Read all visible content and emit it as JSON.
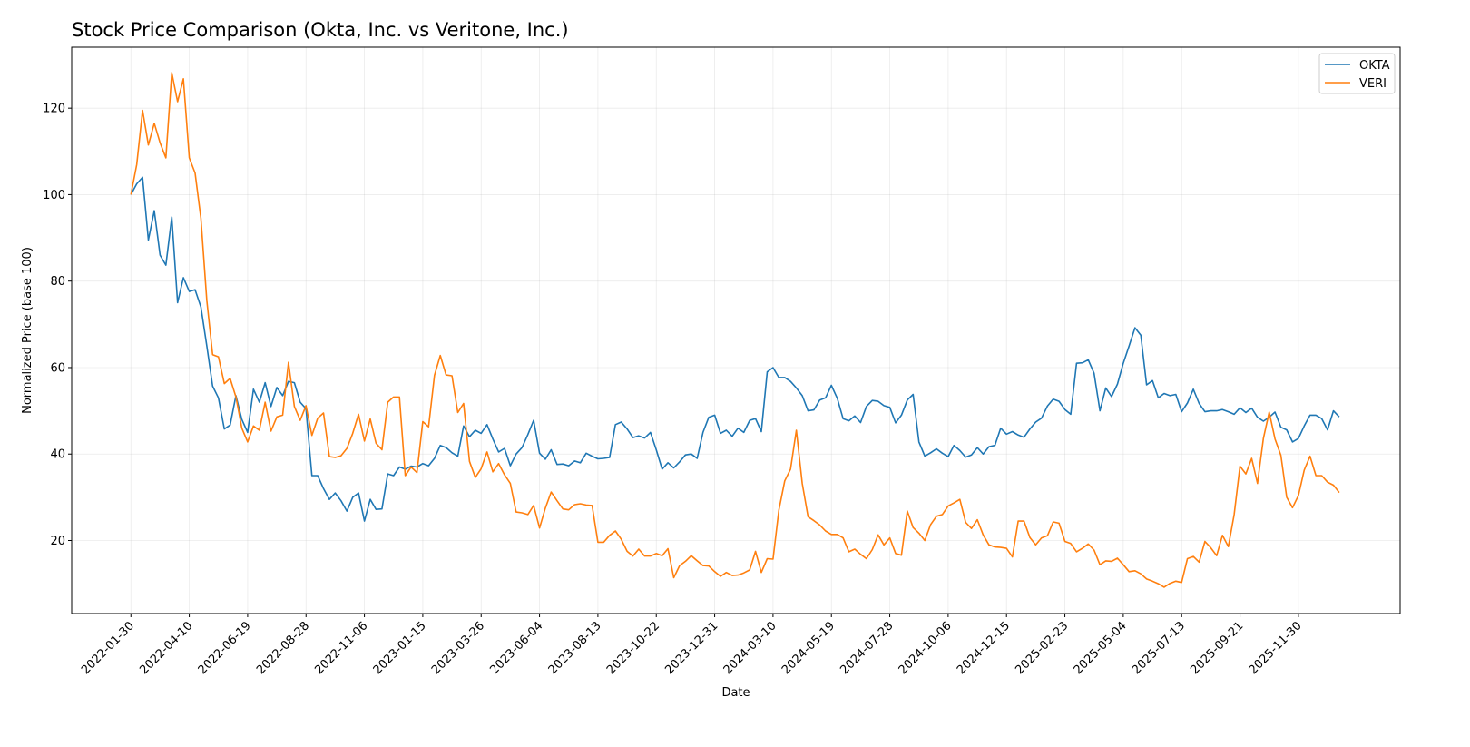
{
  "chart_data": {
    "type": "line",
    "title": "Stock Price Comparison (Okta, Inc. vs Veritone, Inc.)",
    "xlabel": "Date",
    "ylabel": "Normalized Price (base 100)",
    "ylim": [
      3.1,
      134.1
    ],
    "xlim": [
      "2021-11-20",
      "2026-04-01"
    ],
    "yticks": [
      20,
      40,
      60,
      80,
      100,
      120
    ],
    "xticks": [
      "2022-01-30",
      "2022-04-10",
      "2022-06-19",
      "2022-08-28",
      "2022-11-06",
      "2023-01-15",
      "2023-03-26",
      "2023-06-04",
      "2023-08-13",
      "2023-10-22",
      "2023-12-31",
      "2024-03-10",
      "2024-05-19",
      "2024-07-28",
      "2024-10-06",
      "2024-12-15",
      "2025-02-23",
      "2025-05-04",
      "2025-07-13",
      "2025-09-21",
      "2025-11-30"
    ],
    "grid": true,
    "legend_position": "top-right",
    "x": [
      "2022-01-30",
      "2022-02-06",
      "2022-02-13",
      "2022-02-20",
      "2022-02-27",
      "2022-03-06",
      "2022-03-13",
      "2022-03-20",
      "2022-03-27",
      "2022-04-03",
      "2022-04-10",
      "2022-04-17",
      "2022-04-24",
      "2022-05-01",
      "2022-05-08",
      "2022-05-15",
      "2022-05-22",
      "2022-05-29",
      "2022-06-05",
      "2022-06-12",
      "2022-06-19",
      "2022-06-26",
      "2022-07-03",
      "2022-07-10",
      "2022-07-17",
      "2022-07-24",
      "2022-07-31",
      "2022-08-07",
      "2022-08-14",
      "2022-08-21",
      "2022-08-28",
      "2022-09-04",
      "2022-09-11",
      "2022-09-18",
      "2022-09-25",
      "2022-10-02",
      "2022-10-09",
      "2022-10-16",
      "2022-10-23",
      "2022-10-30",
      "2022-11-06",
      "2022-11-13",
      "2022-11-20",
      "2022-11-27",
      "2022-12-04",
      "2022-12-11",
      "2022-12-18",
      "2022-12-25",
      "2023-01-01",
      "2023-01-08",
      "2023-01-15",
      "2023-01-22",
      "2023-01-29",
      "2023-02-05",
      "2023-02-12",
      "2023-02-19",
      "2023-02-26",
      "2023-03-05",
      "2023-03-12",
      "2023-03-19",
      "2023-03-26",
      "2023-04-02",
      "2023-04-09",
      "2023-04-16",
      "2023-04-23",
      "2023-04-30",
      "2023-05-07",
      "2023-05-14",
      "2023-05-21",
      "2023-05-28",
      "2023-06-04",
      "2023-06-11",
      "2023-06-18",
      "2023-06-25",
      "2023-07-02",
      "2023-07-09",
      "2023-07-16",
      "2023-07-23",
      "2023-07-30",
      "2023-08-06",
      "2023-08-13",
      "2023-08-20",
      "2023-08-27",
      "2023-09-03",
      "2023-09-10",
      "2023-09-17",
      "2023-09-24",
      "2023-10-01",
      "2023-10-08",
      "2023-10-15",
      "2023-10-22",
      "2023-10-29",
      "2023-11-05",
      "2023-11-12",
      "2023-11-19",
      "2023-11-26",
      "2023-12-03",
      "2023-12-10",
      "2023-12-17",
      "2023-12-24",
      "2023-12-31",
      "2024-01-07",
      "2024-01-14",
      "2024-01-21",
      "2024-01-28",
      "2024-02-04",
      "2024-02-11",
      "2024-02-18",
      "2024-02-25",
      "2024-03-03",
      "2024-03-10",
      "2024-03-17",
      "2024-03-24",
      "2024-03-31",
      "2024-04-07",
      "2024-04-14",
      "2024-04-21",
      "2024-04-28",
      "2024-05-05",
      "2024-05-12",
      "2024-05-19",
      "2024-05-26",
      "2024-06-02",
      "2024-06-09",
      "2024-06-16",
      "2024-06-23",
      "2024-06-30",
      "2024-07-07",
      "2024-07-14",
      "2024-07-21",
      "2024-07-28",
      "2024-08-04",
      "2024-08-11",
      "2024-08-18",
      "2024-08-25",
      "2024-09-01",
      "2024-09-08",
      "2024-09-15",
      "2024-09-22",
      "2024-09-29",
      "2024-10-06",
      "2024-10-13",
      "2024-10-20",
      "2024-10-27",
      "2024-11-03",
      "2024-11-10",
      "2024-11-17",
      "2024-11-24",
      "2024-12-01",
      "2024-12-08",
      "2024-12-15",
      "2024-12-22",
      "2024-12-29",
      "2025-01-05",
      "2025-01-12",
      "2025-01-19",
      "2025-01-26",
      "2025-02-02",
      "2025-02-09",
      "2025-02-16",
      "2025-02-23",
      "2025-03-02",
      "2025-03-09",
      "2025-03-16",
      "2025-03-23",
      "2025-03-30",
      "2025-04-06",
      "2025-04-13",
      "2025-04-20",
      "2025-04-27",
      "2025-05-04",
      "2025-05-11",
      "2025-05-18",
      "2025-05-25",
      "2025-06-01",
      "2025-06-08",
      "2025-06-15",
      "2025-06-22",
      "2025-06-29",
      "2025-07-06",
      "2025-07-13",
      "2025-07-20",
      "2025-07-27",
      "2025-08-03",
      "2025-08-10",
      "2025-08-17",
      "2025-08-24",
      "2025-08-31",
      "2025-09-07",
      "2025-09-14",
      "2025-09-21",
      "2025-09-28",
      "2025-10-05",
      "2025-10-12",
      "2025-10-19",
      "2025-10-26",
      "2025-11-02",
      "2025-11-09",
      "2025-11-16",
      "2025-11-23",
      "2025-11-30",
      "2025-12-07",
      "2025-12-14",
      "2025-12-21",
      "2025-12-28",
      "2026-01-04",
      "2026-01-11",
      "2026-01-18"
    ],
    "series": [
      {
        "name": "OKTA",
        "color": "#1f77b4",
        "values": [
          100,
          102.5,
          104,
          89.5,
          96.3,
          86,
          83.7,
          94.8,
          75,
          80.8,
          77.6,
          78,
          74,
          65,
          55.7,
          53,
          45.8,
          46.7,
          53.5,
          48,
          45,
          55,
          52,
          56.5,
          51,
          55.4,
          53.5,
          56.8,
          56.5,
          52,
          50.5,
          35,
          35,
          32,
          29.5,
          31,
          29.2,
          26.8,
          30,
          31,
          24.5,
          29.5,
          27.2,
          27.3,
          35.4,
          35,
          37,
          36.5,
          37.2,
          37,
          37.8,
          37.3,
          39,
          42,
          41.5,
          40.3,
          39.5,
          46.5,
          44,
          45.5,
          44.8,
          46.8,
          43.5,
          40.5,
          41.3,
          37.3,
          40,
          41.5,
          44.5,
          47.8,
          40.2,
          38.8,
          41,
          37.6,
          37.7,
          37.3,
          38.4,
          38,
          40.2,
          39.5,
          38.9,
          39,
          39.2,
          46.8,
          47.4,
          45.8,
          43.8,
          44.2,
          43.7,
          45,
          41,
          36.5,
          38,
          36.8,
          38.2,
          39.8,
          40,
          39,
          45,
          48.5,
          49,
          44.8,
          45.5,
          44.1,
          46,
          45,
          47.8,
          48.2,
          45.2,
          59,
          60,
          57.7,
          57.7,
          56.8,
          55.3,
          53.5,
          50,
          50.2,
          52.5,
          53,
          55.9,
          52.9,
          48.2,
          47.7,
          48.8,
          47.3,
          51,
          52.4,
          52.2,
          51.2,
          50.8,
          47.2,
          49,
          52.5,
          53.8,
          42.8,
          39.5,
          40.3,
          41.2,
          40.2,
          39.4,
          42,
          40.8,
          39.3,
          39.8,
          41.5,
          40,
          41.7,
          42,
          46,
          44.6,
          45.2,
          44.4,
          43.9,
          45.8,
          47.4,
          48.3,
          51.1,
          52.7,
          52.2,
          50.3,
          49.2,
          61,
          61.1,
          61.8,
          58.7,
          50,
          55.3,
          53.3,
          56.2,
          61,
          65,
          69.2,
          67.5,
          56,
          57,
          53,
          54,
          53.5,
          53.8,
          49.8,
          51.8,
          55,
          51.7,
          49.8,
          50,
          50,
          50.3,
          49.8,
          49.2,
          50.7,
          49.6,
          50.6,
          48.5,
          47.6,
          48.5,
          49.7,
          46.2,
          45.6,
          42.8,
          43.6,
          46.5,
          49,
          49,
          48.2,
          45.6,
          50,
          48.6
        ]
      },
      {
        "name": "VERI",
        "color": "#ff7f0e",
        "values": [
          100,
          107,
          119.5,
          111.5,
          116.5,
          112,
          108.5,
          128.2,
          121.5,
          126.8,
          108.5,
          105,
          94.5,
          75.5,
          63,
          62.5,
          56.3,
          57.5,
          53.2,
          46,
          42.8,
          46.5,
          45.5,
          52,
          45.3,
          48.6,
          49,
          61.2,
          51,
          47.8,
          51.2,
          44.3,
          48.3,
          49.5,
          39.4,
          39.2,
          39.6,
          41.3,
          44.8,
          49.2,
          43,
          48.1,
          42.5,
          41,
          52,
          53.2,
          53.2,
          35,
          37,
          35.7,
          47.5,
          46.3,
          58.2,
          62.8,
          58.3,
          58.1,
          49.6,
          51.7,
          38.3,
          34.6,
          36.6,
          40.5,
          35.9,
          37.8,
          35.2,
          33.2,
          26.6,
          26.4,
          26,
          28.1,
          22.9,
          27.5,
          31.2,
          29.2,
          27.3,
          27.1,
          28.3,
          28.5,
          28.2,
          28.1,
          19.6,
          19.6,
          21.2,
          22.2,
          20.3,
          17.5,
          16.4,
          18,
          16.4,
          16.4,
          17,
          16.5,
          18.1,
          11.4,
          14.2,
          15.2,
          16.5,
          15.3,
          14.2,
          14.1,
          12.8,
          11.7,
          12.6,
          11.9,
          12,
          12.5,
          13.2,
          17.5,
          12.6,
          15.8,
          15.7,
          27,
          33.8,
          36.5,
          45.5,
          33.2,
          25.5,
          24.6,
          23.6,
          22.2,
          21.4,
          21.4,
          20.6,
          17.4,
          18,
          16.8,
          15.8,
          17.9,
          21.3,
          19,
          20.6,
          17,
          16.6,
          26.8,
          23,
          21.7,
          20,
          23.7,
          25.6,
          26,
          28,
          28.7,
          29.5,
          24.2,
          22.8,
          24.8,
          21.3,
          19,
          18.5,
          18.4,
          18.2,
          16.2,
          24.5,
          24.5,
          20.7,
          19,
          20.6,
          21.1,
          24.3,
          24,
          19.8,
          19.3,
          17.4,
          18.2,
          19.2,
          17.8,
          14.4,
          15.3,
          15.2,
          15.9,
          14.4,
          12.8,
          13,
          12.3,
          11.1,
          10.6,
          10,
          9.2,
          10.1,
          10.6,
          10.3,
          15.8,
          16.3,
          15,
          19.8,
          18.3,
          16.5,
          21.2,
          18.6,
          26,
          37.2,
          35.4,
          39,
          33.2,
          43.6,
          49.7,
          43.5,
          39.7,
          30,
          27.6,
          30.4,
          36.3,
          39.5,
          35,
          35,
          33.5,
          32.8,
          31.1
        ]
      }
    ]
  }
}
